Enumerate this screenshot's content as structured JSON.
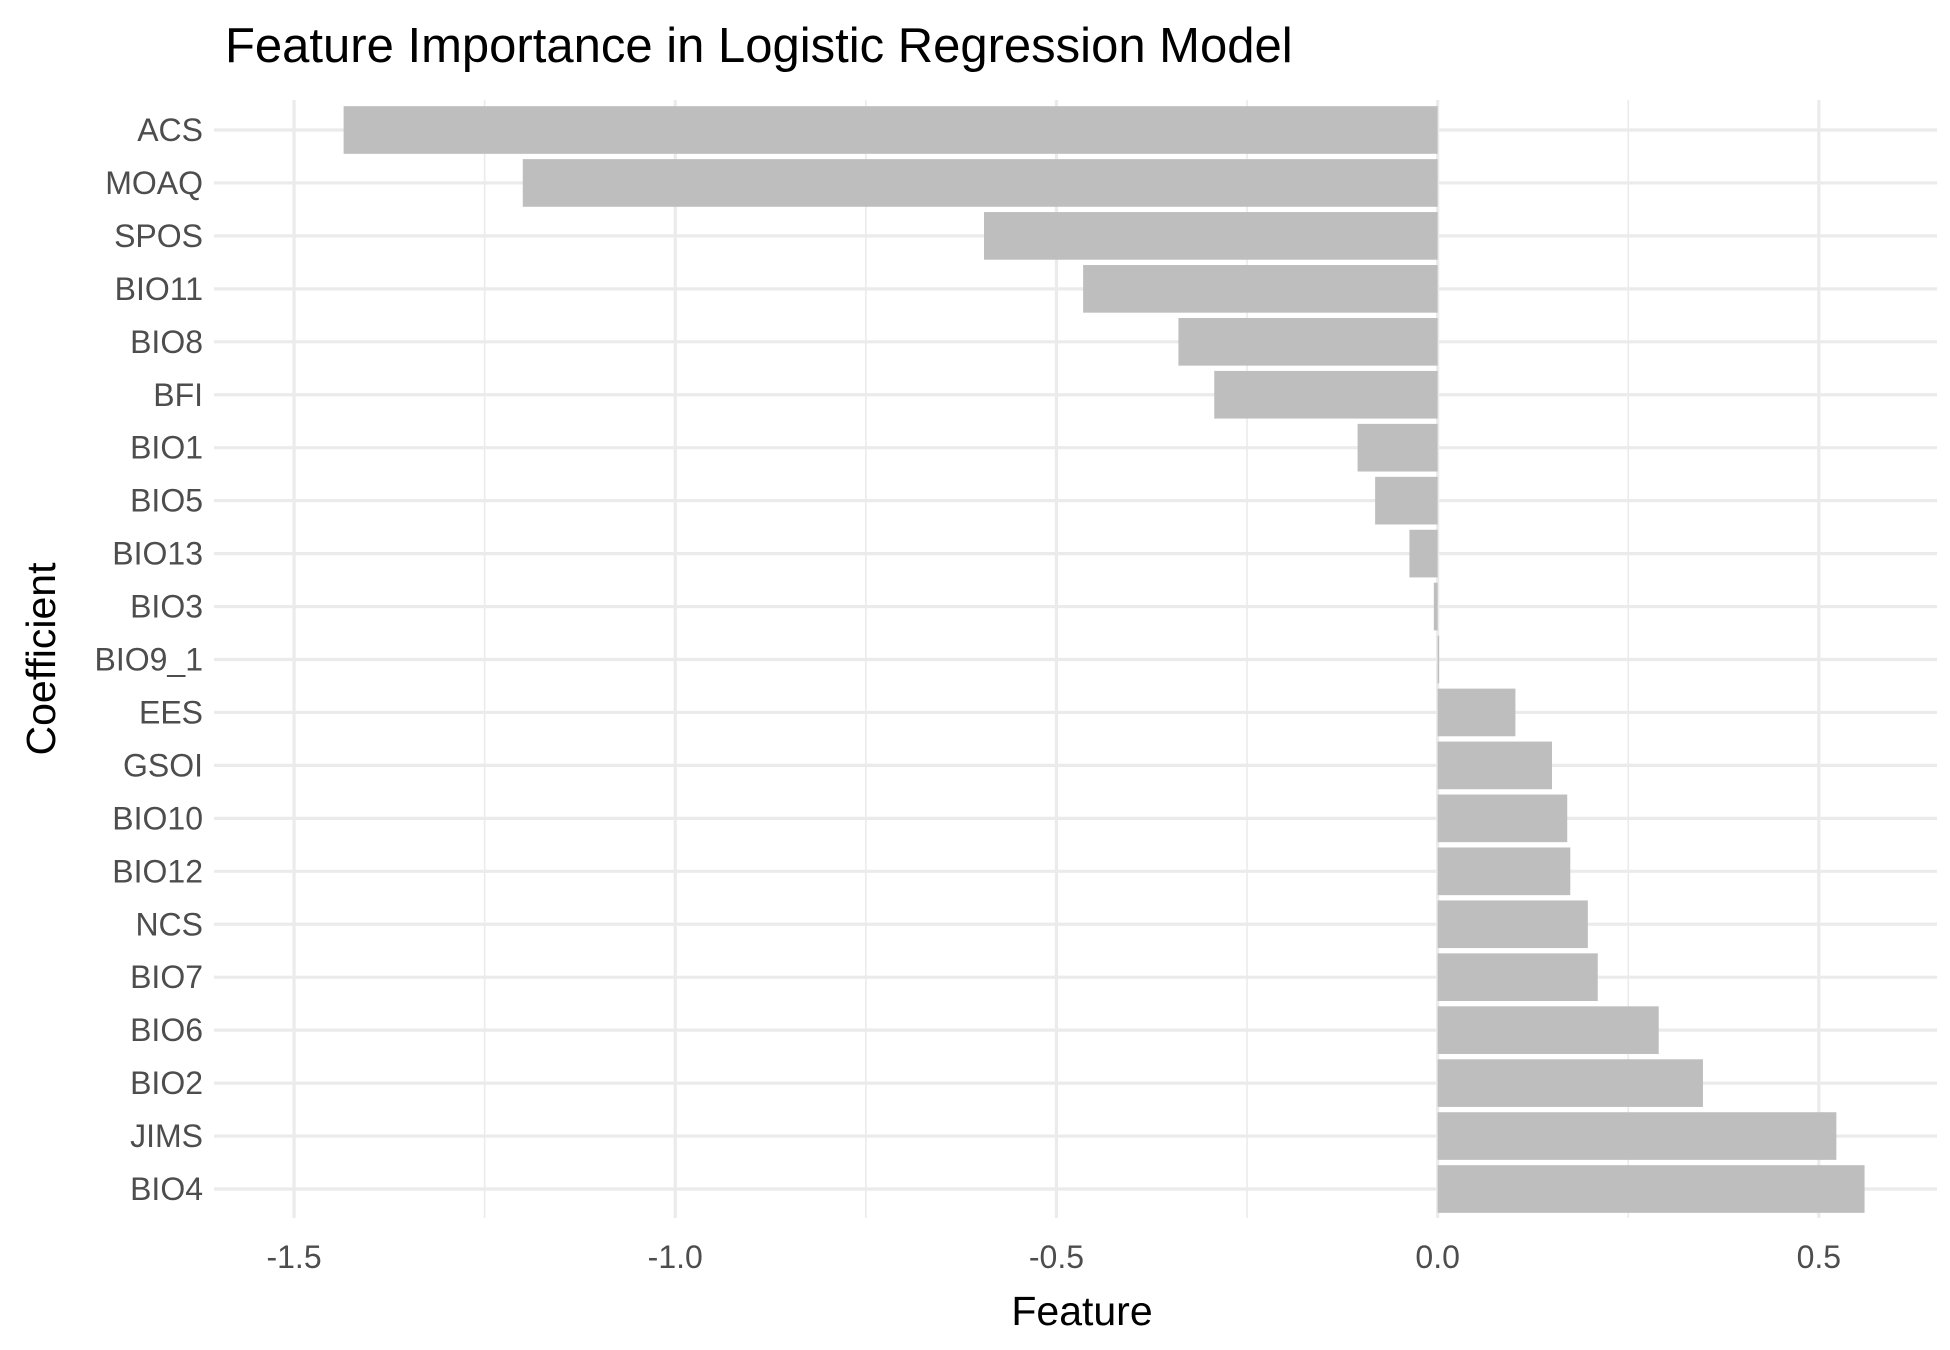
{
  "chart_data": {
    "type": "bar",
    "orientation": "horizontal",
    "title": "Feature Importance in Logistic Regression Model",
    "xlabel": "Feature",
    "ylabel": "Coefficient",
    "xlim": [
      -1.605,
      0.655
    ],
    "x_ticks": [
      -1.5,
      -1.0,
      -0.5,
      0.0,
      0.5
    ],
    "x_tick_labels": [
      "-1.5",
      "-1.0",
      "-0.5",
      "0.0",
      "0.5"
    ],
    "x_minor_ticks": [
      -1.25,
      -0.75,
      -0.25,
      0.25
    ],
    "grid": true,
    "legend": "none",
    "bar_color": "#bebebe",
    "categories": [
      "ACS",
      "MOAQ",
      "SPOS",
      "BIO11",
      "BIO8",
      "BFI",
      "BIO1",
      "BIO5",
      "BIO13",
      "BIO3",
      "BIO9_1",
      "EES",
      "GSOI",
      "BIO10",
      "BIO12",
      "NCS",
      "BIO7",
      "BIO6",
      "BIO2",
      "JIMS",
      "BIO4"
    ],
    "values": [
      -1.435,
      -1.2,
      -0.595,
      -0.465,
      -0.34,
      -0.293,
      -0.105,
      -0.082,
      -0.037,
      -0.005,
      0.002,
      0.102,
      0.15,
      0.17,
      0.174,
      0.197,
      0.21,
      0.29,
      0.348,
      0.523,
      0.56
    ]
  }
}
